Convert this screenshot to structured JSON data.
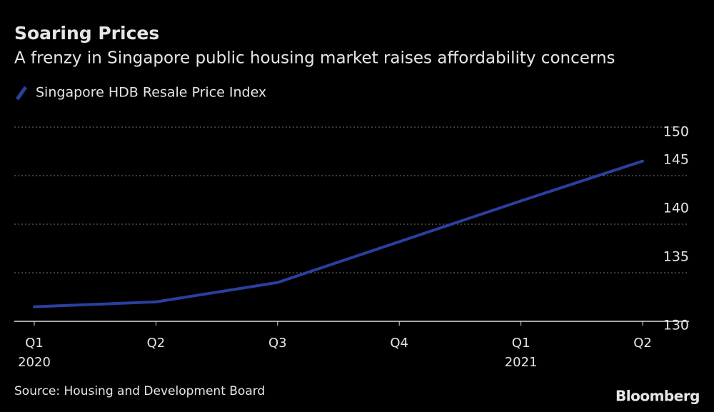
{
  "chart_data": {
    "type": "line",
    "title": "Soaring Prices",
    "subtitle": "A frenzy in Singapore public housing market raises affordability concerns",
    "categories": [
      "Q1",
      "Q2",
      "Q3",
      "Q4",
      "Q1",
      "Q2"
    ],
    "years": [
      "2020",
      null,
      null,
      null,
      "2021",
      null
    ],
    "series": [
      {
        "name": "Singapore HDB Resale Price Index",
        "color": "#2b3f9e",
        "values": [
          131.5,
          132.0,
          134.0,
          138.2,
          142.4,
          146.5
        ]
      }
    ],
    "ylim": [
      130,
      150
    ],
    "yticks": [
      130,
      135,
      140,
      145,
      150
    ],
    "grid": true,
    "source": "Source: Housing and Development Board",
    "brand": "Bloomberg"
  }
}
